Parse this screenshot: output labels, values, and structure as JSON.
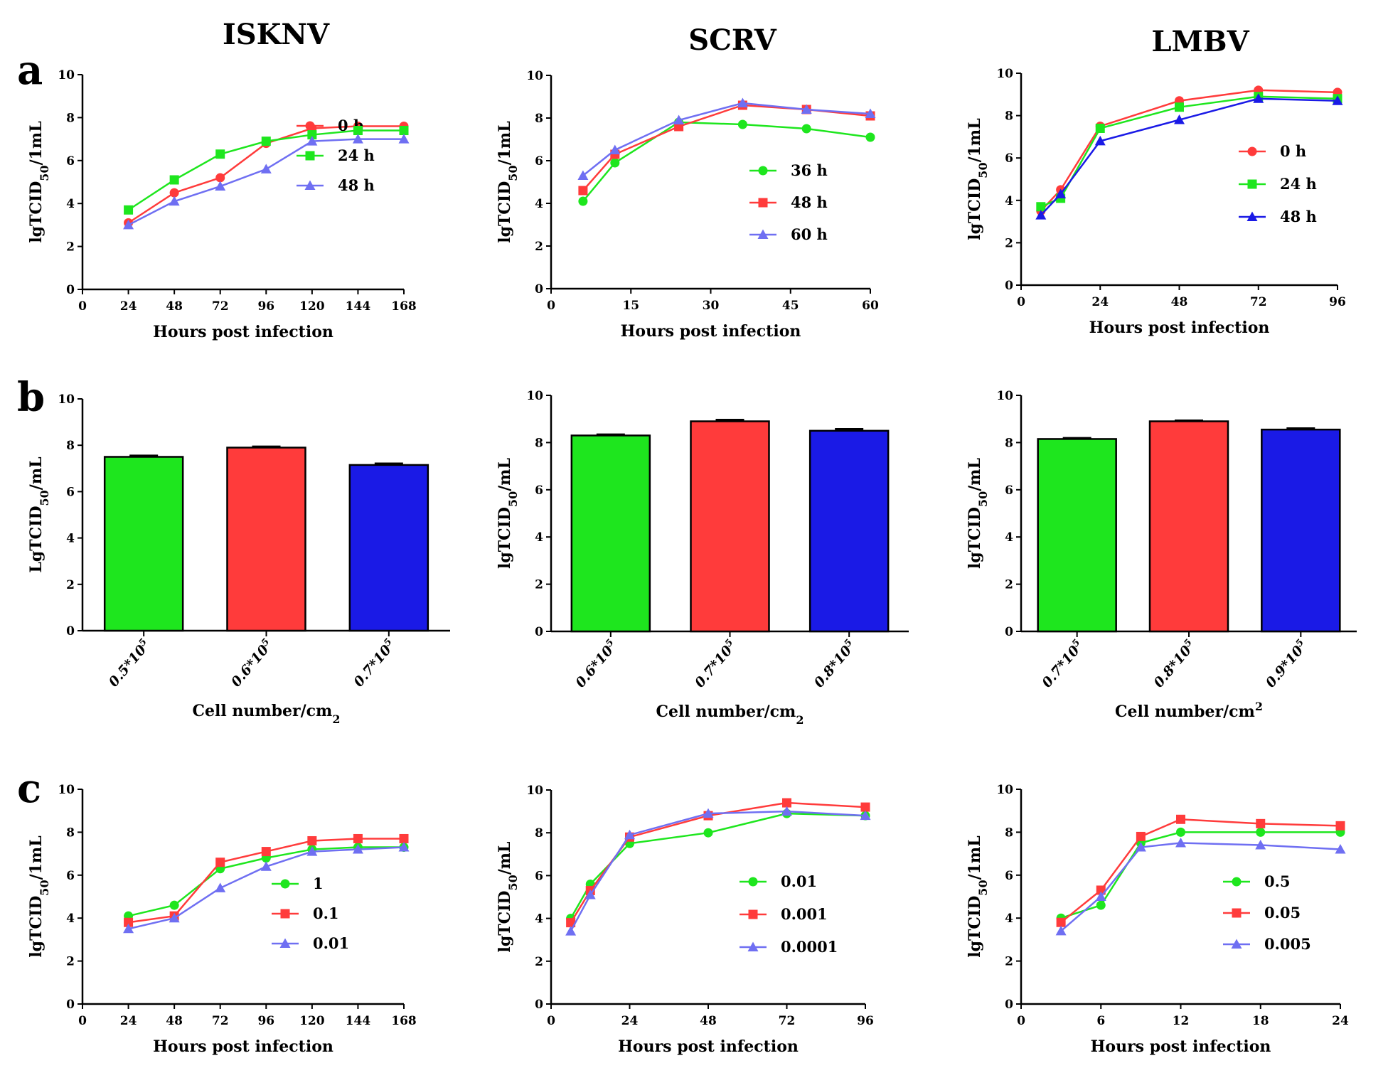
{
  "figure": {
    "column_titles": [
      "ISKNV",
      "SCRV",
      "LMBV"
    ],
    "row_letters": [
      "a",
      "b",
      "c"
    ]
  },
  "colors": {
    "red": "#ff3b3b",
    "green": "#1ee61e",
    "lightblue": "#6f6ff2",
    "blue": "#1a1ae6"
  },
  "chart_data": [
    {
      "type": "line",
      "row": "a",
      "title": "ISKNV",
      "xlabel": "Hours post infection",
      "ylabel": "lgTCID50/1mL",
      "ylabel_sub": "50",
      "xlim": [
        0,
        168
      ],
      "ylim": [
        0,
        10
      ],
      "xticks": [
        0,
        24,
        48,
        72,
        96,
        120,
        144,
        168
      ],
      "yticks": [
        0,
        2,
        4,
        6,
        8,
        10
      ],
      "series": [
        {
          "name": "0 h",
          "color": "#ff3b3b",
          "marker": "circle",
          "x": [
            24,
            48,
            72,
            96,
            120,
            144,
            168
          ],
          "y": [
            3.1,
            4.5,
            5.2,
            6.8,
            7.5,
            7.6,
            7.6
          ]
        },
        {
          "name": "24 h",
          "color": "#1ee61e",
          "marker": "square",
          "x": [
            24,
            48,
            72,
            96,
            120,
            144,
            168
          ],
          "y": [
            3.7,
            5.1,
            6.3,
            6.9,
            7.2,
            7.4,
            7.4
          ]
        },
        {
          "name": "48 h",
          "color": "#6f6ff2",
          "marker": "triangle",
          "x": [
            24,
            48,
            72,
            96,
            120,
            144,
            168
          ],
          "y": [
            3.0,
            4.1,
            4.8,
            5.6,
            6.9,
            7.0,
            7.0
          ]
        }
      ]
    },
    {
      "type": "line",
      "row": "a",
      "title": "SCRV",
      "xlabel": "Hours post infection",
      "ylabel": "lgTCID50/1mL",
      "ylabel_sub": "50",
      "xlim": [
        0,
        60
      ],
      "ylim": [
        0,
        10
      ],
      "xticks": [
        0,
        15,
        30,
        45,
        60
      ],
      "yticks": [
        0,
        2,
        4,
        6,
        8,
        10
      ],
      "series": [
        {
          "name": "36 h",
          "color": "#1ee61e",
          "marker": "circle",
          "x": [
            6,
            12,
            24,
            36,
            48,
            60
          ],
          "y": [
            4.1,
            5.9,
            7.8,
            7.7,
            7.5,
            7.1
          ]
        },
        {
          "name": "48 h",
          "color": "#ff3b3b",
          "marker": "square",
          "x": [
            6,
            12,
            24,
            36,
            48,
            60
          ],
          "y": [
            4.6,
            6.3,
            7.6,
            8.6,
            8.4,
            8.1
          ]
        },
        {
          "name": "60 h",
          "color": "#6f6ff2",
          "marker": "triangle",
          "x": [
            6,
            12,
            24,
            36,
            48,
            60
          ],
          "y": [
            5.3,
            6.5,
            7.9,
            8.7,
            8.4,
            8.2
          ]
        }
      ]
    },
    {
      "type": "line",
      "row": "a",
      "title": "LMBV",
      "xlabel": "Hours post infection",
      "ylabel": "lgTCID50/1mL",
      "ylabel_sub": "50",
      "xlim": [
        0,
        96
      ],
      "ylim": [
        0,
        10
      ],
      "xticks": [
        0,
        24,
        48,
        72,
        96
      ],
      "yticks": [
        0,
        2,
        4,
        6,
        8,
        10
      ],
      "series": [
        {
          "name": "0 h",
          "color": "#ff3b3b",
          "marker": "circle",
          "x": [
            6,
            12,
            24,
            48,
            72,
            96
          ],
          "y": [
            3.5,
            4.5,
            7.5,
            8.7,
            9.2,
            9.1
          ]
        },
        {
          "name": "24 h",
          "color": "#1ee61e",
          "marker": "square",
          "x": [
            6,
            12,
            24,
            48,
            72,
            96
          ],
          "y": [
            3.7,
            4.1,
            7.4,
            8.4,
            8.9,
            8.8
          ]
        },
        {
          "name": "48 h",
          "color": "#1a1ae6",
          "marker": "triangle",
          "x": [
            6,
            12,
            24,
            48,
            72,
            96
          ],
          "y": [
            3.3,
            4.3,
            6.8,
            7.8,
            8.8,
            8.7
          ]
        }
      ]
    },
    {
      "type": "bar",
      "row": "b",
      "title": "ISKNV",
      "xlabel": "Cell number/cm",
      "xlabel_sub": "2",
      "ylabel": "LgTCID50/mL",
      "ylabel_sub": "50",
      "ylim": [
        0,
        10
      ],
      "yticks": [
        0,
        2,
        4,
        6,
        8,
        10
      ],
      "categories": [
        "0.5*10",
        "0.6*10",
        "0.7*10"
      ],
      "category_exponent": "5",
      "values": [
        7.5,
        7.9,
        7.15
      ],
      "errors": [
        0.05,
        0.04,
        0.06
      ],
      "bar_colors": [
        "#1ee61e",
        "#ff3b3b",
        "#1a1ae6"
      ]
    },
    {
      "type": "bar",
      "row": "b",
      "title": "SCRV",
      "xlabel": "Cell number/cm",
      "xlabel_sub": "2",
      "ylabel": "lgTCID50/mL",
      "ylabel_sub": "50",
      "ylim": [
        0,
        10
      ],
      "yticks": [
        0,
        2,
        4,
        6,
        8,
        10
      ],
      "categories": [
        "0.6*10",
        "0.7*10",
        "0.8*10"
      ],
      "category_exponent": "5",
      "values": [
        8.3,
        8.9,
        8.5
      ],
      "errors": [
        0.04,
        0.06,
        0.07
      ],
      "bar_colors": [
        "#1ee61e",
        "#ff3b3b",
        "#1a1ae6"
      ]
    },
    {
      "type": "bar",
      "row": "b",
      "title": "LMBV",
      "xlabel": "Cell number/cm",
      "xlabel_sup": "2",
      "ylabel": "lgTCID50/mL",
      "ylabel_sub": "50",
      "ylim": [
        0,
        10
      ],
      "yticks": [
        0,
        2,
        4,
        6,
        8,
        10
      ],
      "categories": [
        "0.7*10",
        "0.8*10",
        "0.9*10"
      ],
      "category_exponent": "5",
      "values": [
        8.15,
        8.9,
        8.55
      ],
      "errors": [
        0.04,
        0.03,
        0.05
      ],
      "bar_colors": [
        "#1ee61e",
        "#ff3b3b",
        "#1a1ae6"
      ]
    },
    {
      "type": "line",
      "row": "c",
      "title": "ISKNV",
      "xlabel": "Hours post infection",
      "ylabel": "lgTCID50/1mL",
      "ylabel_sub": "50",
      "xlim": [
        0,
        168
      ],
      "ylim": [
        0,
        10
      ],
      "xticks": [
        0,
        24,
        48,
        72,
        96,
        120,
        144,
        168
      ],
      "yticks": [
        0,
        2,
        4,
        6,
        8,
        10
      ],
      "series": [
        {
          "name": "1",
          "color": "#1ee61e",
          "marker": "circle",
          "x": [
            24,
            48,
            72,
            96,
            120,
            144,
            168
          ],
          "y": [
            4.1,
            4.6,
            6.3,
            6.8,
            7.2,
            7.3,
            7.3
          ]
        },
        {
          "name": "0.1",
          "color": "#ff3b3b",
          "marker": "square",
          "x": [
            24,
            48,
            72,
            96,
            120,
            144,
            168
          ],
          "y": [
            3.8,
            4.1,
            6.6,
            7.1,
            7.6,
            7.7,
            7.7
          ]
        },
        {
          "name": "0.01",
          "color": "#6f6ff2",
          "marker": "triangle",
          "x": [
            24,
            48,
            72,
            96,
            120,
            144,
            168
          ],
          "y": [
            3.5,
            4.0,
            5.4,
            6.4,
            7.1,
            7.2,
            7.3
          ]
        }
      ]
    },
    {
      "type": "line",
      "row": "c",
      "title": "SCRV",
      "xlabel": "Hours post infection",
      "ylabel": "lgTCID50/mL",
      "ylabel_sub": "50",
      "xlim": [
        0,
        96
      ],
      "ylim": [
        0,
        10
      ],
      "xticks": [
        0,
        24,
        48,
        72,
        96
      ],
      "yticks": [
        0,
        2,
        4,
        6,
        8,
        10
      ],
      "series": [
        {
          "name": "0.01",
          "color": "#1ee61e",
          "marker": "circle",
          "x": [
            6,
            12,
            24,
            48,
            72,
            96
          ],
          "y": [
            4.0,
            5.6,
            7.5,
            8.0,
            8.9,
            8.8
          ]
        },
        {
          "name": "0.001",
          "color": "#ff3b3b",
          "marker": "square",
          "x": [
            6,
            12,
            24,
            48,
            72,
            96
          ],
          "y": [
            3.8,
            5.3,
            7.8,
            8.8,
            9.4,
            9.2
          ]
        },
        {
          "name": "0.0001",
          "color": "#6f6ff2",
          "marker": "triangle",
          "x": [
            6,
            12,
            24,
            48,
            72,
            96
          ],
          "y": [
            3.4,
            5.1,
            7.9,
            8.9,
            9.0,
            8.8
          ]
        }
      ]
    },
    {
      "type": "line",
      "row": "c",
      "title": "LMBV",
      "xlabel": "Hours post infection",
      "ylabel": "lgTCID50/1mL",
      "ylabel_sub": "50",
      "xlim": [
        0,
        24
      ],
      "ylim": [
        0,
        10
      ],
      "xticks": [
        0,
        6,
        12,
        18,
        24
      ],
      "yticks": [
        0,
        2,
        4,
        6,
        8,
        10
      ],
      "series": [
        {
          "name": "0.5",
          "color": "#1ee61e",
          "marker": "circle",
          "x": [
            3,
            6,
            9,
            12,
            18,
            24
          ],
          "y": [
            4.0,
            4.6,
            7.5,
            8.0,
            8.0,
            8.0
          ]
        },
        {
          "name": "0.05",
          "color": "#ff3b3b",
          "marker": "square",
          "x": [
            3,
            6,
            9,
            12,
            18,
            24
          ],
          "y": [
            3.8,
            5.3,
            7.8,
            8.6,
            8.4,
            8.3
          ]
        },
        {
          "name": "0.005",
          "color": "#6f6ff2",
          "marker": "triangle",
          "x": [
            3,
            6,
            9,
            12,
            18,
            24
          ],
          "y": [
            3.4,
            5.0,
            7.3,
            7.5,
            7.4,
            7.2
          ]
        }
      ]
    }
  ]
}
